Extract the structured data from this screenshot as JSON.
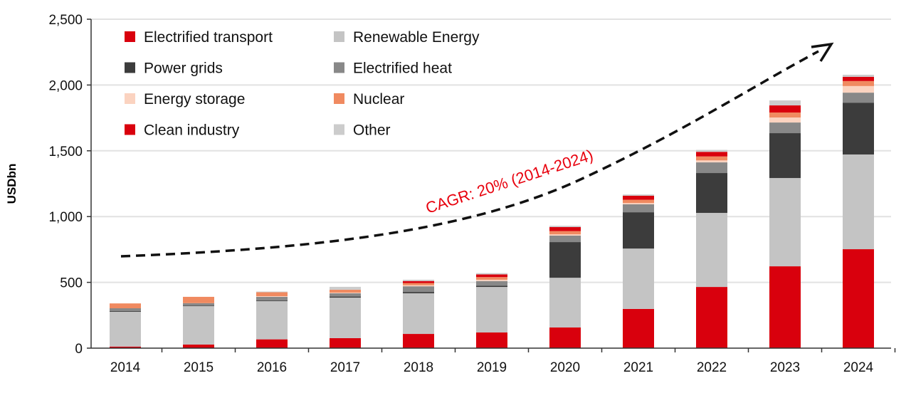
{
  "chart_data": {
    "type": "bar",
    "stacked": true,
    "title": "",
    "xlabel": "",
    "ylabel": "USDbn",
    "ylim": [
      0,
      2500
    ],
    "yticks": [
      0,
      500,
      1000,
      1500,
      2000,
      2500
    ],
    "ytick_labels": [
      "0",
      "500",
      "1,000",
      "1,500",
      "2,000",
      "2,500"
    ],
    "grid": true,
    "legend_placement": "top-left",
    "categories": [
      "2014",
      "2015",
      "2016",
      "2017",
      "2018",
      "2019",
      "2020",
      "2021",
      "2022",
      "2023",
      "2024"
    ],
    "series": [
      {
        "name": "Electrified transport",
        "color": "#d9000d",
        "values": [
          12,
          27,
          67,
          76,
          108,
          119,
          157,
          298,
          465,
          622,
          752
        ]
      },
      {
        "name": "Renewable Energy",
        "color": "#c4c4c4",
        "values": [
          264,
          292,
          290,
          308,
          309,
          346,
          378,
          459,
          563,
          671,
          720
        ]
      },
      {
        "name": "Power grids",
        "color": "#3c3c3c",
        "values": [
          5,
          3,
          5,
          8,
          10,
          10,
          271,
          276,
          303,
          341,
          394
        ]
      },
      {
        "name": "Electrified heat",
        "color": "#888888",
        "values": [
          22,
          20,
          28,
          25,
          43,
          35,
          49,
          60,
          81,
          81,
          76
        ]
      },
      {
        "name": "Energy storage",
        "color": "#fbd3c0",
        "values": [
          0,
          0,
          5,
          5,
          8,
          10,
          10,
          10,
          15,
          38,
          50
        ]
      },
      {
        "name": "Nuclear",
        "color": "#f08a60",
        "values": [
          37,
          48,
          30,
          22,
          17,
          20,
          25,
          25,
          30,
          38,
          38
        ]
      },
      {
        "name": "Clean industry",
        "color": "#d9000d",
        "values": [
          0,
          0,
          0,
          0,
          15,
          20,
          30,
          30,
          35,
          54,
          32
        ]
      },
      {
        "name": "Other",
        "color": "#cccccc",
        "values": [
          0,
          0,
          5,
          22,
          10,
          10,
          10,
          10,
          15,
          38,
          16
        ]
      }
    ],
    "annotation": {
      "text": "CAGR: 20% (2014-2024)",
      "color": "#e8000d"
    }
  }
}
